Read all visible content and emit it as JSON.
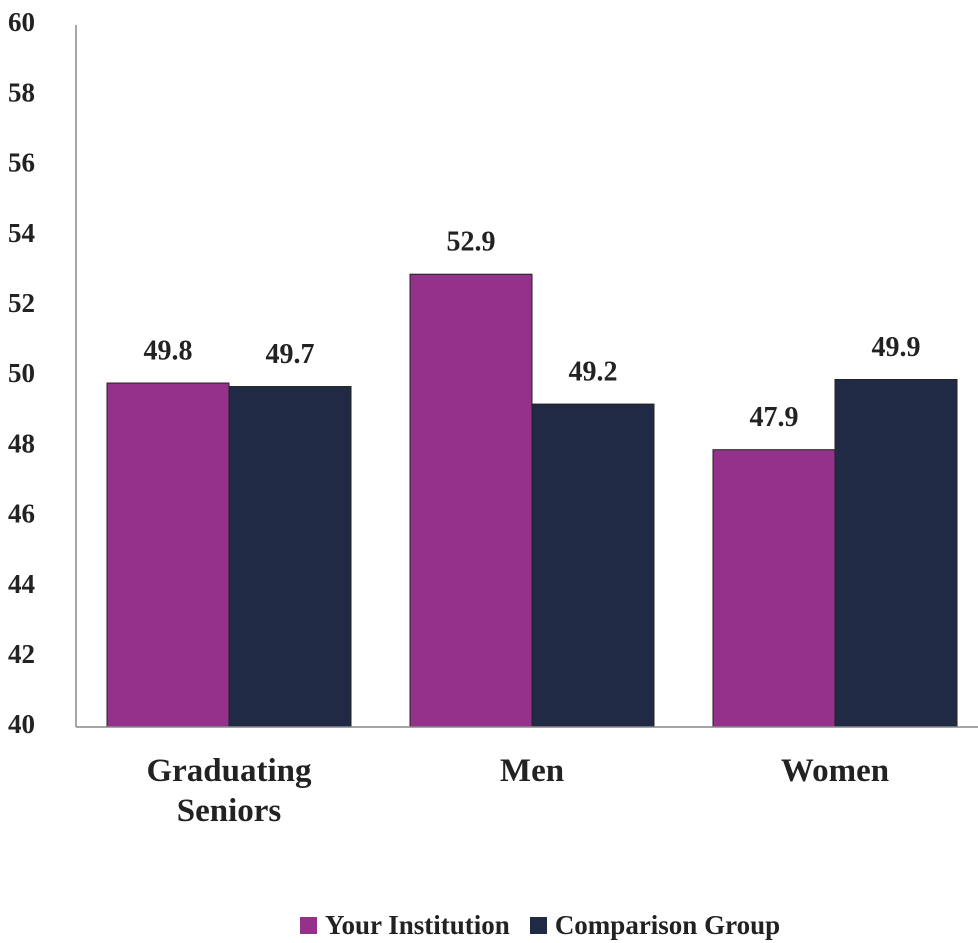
{
  "chart_data": {
    "type": "bar",
    "categories": [
      "Graduating Seniors",
      "Men",
      "Women"
    ],
    "series": [
      {
        "name": "Your Institution",
        "color": "#93318b",
        "values": [
          49.8,
          52.9,
          47.9
        ]
      },
      {
        "name": "Comparison Group",
        "color": "#202a44",
        "values": [
          49.7,
          49.2,
          49.9
        ]
      }
    ],
    "ylim": [
      40,
      60
    ],
    "yticks": [
      40,
      42,
      44,
      46,
      48,
      50,
      52,
      54,
      56,
      58,
      60
    ],
    "grid": false,
    "legend": "bottom"
  }
}
